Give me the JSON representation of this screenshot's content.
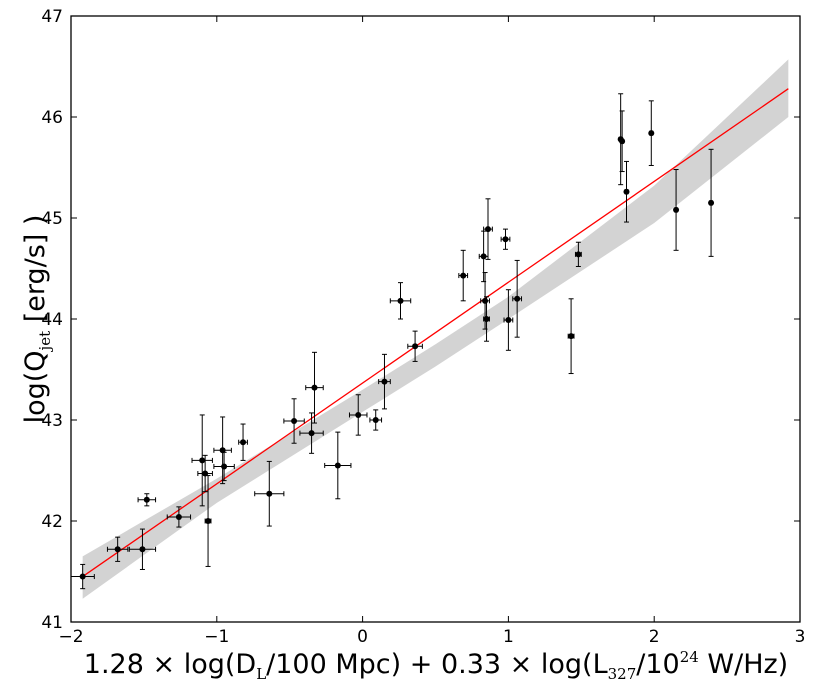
{
  "chart_data": {
    "type": "scatter",
    "xlim": [
      -2,
      3
    ],
    "ylim": [
      41,
      47
    ],
    "x_ticks": [
      -2,
      -1,
      0,
      1,
      2,
      3
    ],
    "x_tick_labels": [
      "−2",
      "−1",
      "0",
      "1",
      "2",
      "3"
    ],
    "y_ticks": [
      41,
      42,
      43,
      44,
      45,
      46,
      47
    ],
    "y_tick_labels": [
      "41",
      "42",
      "43",
      "44",
      "45",
      "46",
      "47"
    ],
    "xlabel": {
      "p1": "1.28 × log(D",
      "p1_sub": "L",
      "p2": "/100 Mpc) + 0.33 × log(L",
      "p2_sub": "327",
      "p3": "/10",
      "p3_sup": "24",
      "p4": " W/Hz)"
    },
    "ylabel": {
      "p1": "log(Q",
      "p1_sub": "jet",
      "p2": " [erg/s] )"
    },
    "grid": false,
    "colors": {
      "fit_line": "#ff0000",
      "confidence_band": "#d3d3d3",
      "points": "#000000"
    },
    "fit": {
      "line": [
        [
          -1.92,
          41.45
        ],
        [
          2.92,
          46.28
        ]
      ],
      "band": {
        "upper": [
          [
            -1.92,
            41.65
          ],
          [
            -1.0,
            42.42
          ],
          [
            0.0,
            43.3
          ],
          [
            0.5,
            43.75
          ],
          [
            1.0,
            44.22
          ],
          [
            2.0,
            45.32
          ],
          [
            2.92,
            46.57
          ]
        ],
        "lower": [
          [
            -1.92,
            41.23
          ],
          [
            -1.0,
            42.18
          ],
          [
            0.0,
            43.08
          ],
          [
            0.5,
            43.53
          ],
          [
            1.0,
            44.0
          ],
          [
            2.0,
            44.95
          ],
          [
            2.92,
            46.0
          ]
        ]
      }
    },
    "points": [
      {
        "x": -1.92,
        "y": 41.45,
        "xerr": 0.08,
        "yerr": 0.12
      },
      {
        "x": -1.68,
        "y": 41.72,
        "xerr": 0.07,
        "yerr": 0.12
      },
      {
        "x": -1.51,
        "y": 41.72,
        "xerr": 0.09,
        "yerr": 0.2
      },
      {
        "x": -1.48,
        "y": 42.21,
        "xerr": 0.06,
        "yerr": 0.06
      },
      {
        "x": -1.26,
        "y": 42.04,
        "xerr": 0.08,
        "yerr": 0.1
      },
      {
        "x": -1.1,
        "y": 42.6,
        "xerr": 0.07,
        "yerr": 0.45
      },
      {
        "x": -1.08,
        "y": 42.47,
        "xerr": 0.05,
        "yerr": 0.18
      },
      {
        "x": -1.06,
        "y": 42.0,
        "xerr": 0.02,
        "yerr": 0.45
      },
      {
        "x": -0.96,
        "y": 42.7,
        "xerr": 0.06,
        "yerr": 0.33
      },
      {
        "x": -0.95,
        "y": 42.54,
        "xerr": 0.07,
        "yerr": 0.14
      },
      {
        "x": -0.82,
        "y": 42.78,
        "xerr": 0.03,
        "yerr": 0.18
      },
      {
        "x": -0.64,
        "y": 42.27,
        "xerr": 0.1,
        "yerr": 0.32
      },
      {
        "x": -0.47,
        "y": 42.99,
        "xerr": 0.07,
        "yerr": 0.22
      },
      {
        "x": -0.35,
        "y": 42.87,
        "xerr": 0.08,
        "yerr": 0.2
      },
      {
        "x": -0.33,
        "y": 43.32,
        "xerr": 0.06,
        "yerr": 0.35
      },
      {
        "x": -0.17,
        "y": 42.55,
        "xerr": 0.09,
        "yerr": 0.33
      },
      {
        "x": -0.03,
        "y": 43.05,
        "xerr": 0.06,
        "yerr": 0.2
      },
      {
        "x": 0.09,
        "y": 43.0,
        "xerr": 0.04,
        "yerr": 0.1
      },
      {
        "x": 0.15,
        "y": 43.38,
        "xerr": 0.04,
        "yerr": 0.27
      },
      {
        "x": 0.26,
        "y": 44.18,
        "xerr": 0.07,
        "yerr": 0.18
      },
      {
        "x": 0.36,
        "y": 43.73,
        "xerr": 0.05,
        "yerr": 0.15
      },
      {
        "x": 0.69,
        "y": 44.43,
        "xerr": 0.03,
        "yerr": 0.25
      },
      {
        "x": 0.83,
        "y": 44.62,
        "xerr": 0.03,
        "yerr": 0.25
      },
      {
        "x": 0.84,
        "y": 44.18,
        "xerr": 0.03,
        "yerr": 0.28
      },
      {
        "x": 0.85,
        "y": 44.0,
        "xerr": 0.02,
        "yerr": 0.22
      },
      {
        "x": 0.86,
        "y": 44.89,
        "xerr": 0.03,
        "yerr": 0.3
      },
      {
        "x": 0.98,
        "y": 44.79,
        "xerr": 0.03,
        "yerr": 0.1
      },
      {
        "x": 1.0,
        "y": 43.99,
        "xerr": 0.03,
        "yerr": 0.3
      },
      {
        "x": 1.06,
        "y": 44.2,
        "xerr": 0.03,
        "yerr": 0.38
      },
      {
        "x": 1.43,
        "y": 43.83,
        "xerr": 0.02,
        "yerr": 0.37
      },
      {
        "x": 1.48,
        "y": 44.64,
        "xerr": 0.02,
        "yerr": 0.12
      },
      {
        "x": 1.77,
        "y": 45.78,
        "xerr": 0.01,
        "yerr": 0.45
      },
      {
        "x": 1.78,
        "y": 45.76,
        "xerr": 0.01,
        "yerr": 0.3
      },
      {
        "x": 1.81,
        "y": 45.26,
        "xerr": 0.01,
        "yerr": 0.3
      },
      {
        "x": 1.98,
        "y": 45.84,
        "xerr": 0.01,
        "yerr": 0.32
      },
      {
        "x": 2.15,
        "y": 45.08,
        "xerr": 0.01,
        "yerr": 0.4
      },
      {
        "x": 2.39,
        "y": 45.15,
        "xerr": 0.01,
        "yerr": 0.53
      }
    ]
  }
}
